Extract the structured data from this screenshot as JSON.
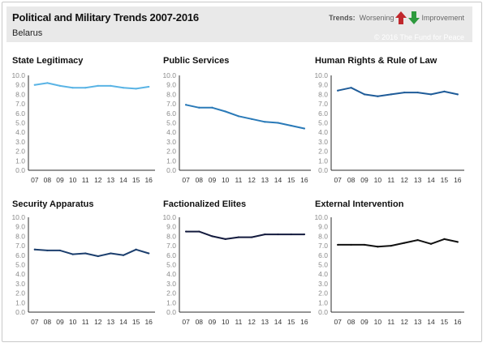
{
  "header": {
    "title": "Political and Military Trends 2007-2016",
    "subtitle": "Belarus",
    "trends_label": "Trends:",
    "worsening_label": "Worsening",
    "improvement_label": "Improvement",
    "copyright": "© 2016 The Fund for Peace"
  },
  "colors": {
    "header_bg": "#e9e9e9",
    "worsening_arrow": "#c0282d",
    "improvement_arrow": "#2e9a3e"
  },
  "chart_data": [
    {
      "type": "line",
      "title": "State Legitimacy",
      "color": "#5ab4e5",
      "categories": [
        "07",
        "08",
        "09",
        "10",
        "11",
        "12",
        "13",
        "14",
        "15",
        "16"
      ],
      "values": [
        9.0,
        9.2,
        8.9,
        8.7,
        8.7,
        8.9,
        8.9,
        8.7,
        8.6,
        8.8
      ],
      "ylim": [
        0,
        10
      ],
      "yticks": [
        "0.0",
        "1.0",
        "2.0",
        "3.0",
        "4.0",
        "5.0",
        "6.0",
        "7.0",
        "8.0",
        "9.0",
        "10.0"
      ]
    },
    {
      "type": "line",
      "title": "Public Services",
      "color": "#2a7ab8",
      "categories": [
        "07",
        "08",
        "09",
        "10",
        "11",
        "12",
        "13",
        "14",
        "15",
        "16"
      ],
      "values": [
        6.9,
        6.6,
        6.6,
        6.2,
        5.7,
        5.4,
        5.1,
        5.0,
        4.7,
        4.4
      ],
      "ylim": [
        0,
        10
      ],
      "yticks": [
        "0.0",
        "1.0",
        "2.0",
        "3.0",
        "4.0",
        "5.0",
        "6.0",
        "7.0",
        "8.0",
        "9.0",
        "10.0"
      ]
    },
    {
      "type": "line",
      "title": "Human Rights & Rule of Law",
      "color": "#1f5c99",
      "categories": [
        "07",
        "08",
        "09",
        "10",
        "11",
        "12",
        "13",
        "14",
        "15",
        "16"
      ],
      "values": [
        8.4,
        8.7,
        8.0,
        7.8,
        8.0,
        8.2,
        8.2,
        8.0,
        8.3,
        8.0
      ],
      "ylim": [
        0,
        10
      ],
      "yticks": [
        "0.0",
        "1.0",
        "2.0",
        "3.0",
        "4.0",
        "5.0",
        "6.0",
        "7.0",
        "8.0",
        "9.0",
        "10.0"
      ]
    },
    {
      "type": "line",
      "title": "Security Apparatus",
      "color": "#1c3f6e",
      "categories": [
        "07",
        "08",
        "09",
        "10",
        "11",
        "12",
        "13",
        "14",
        "15",
        "16"
      ],
      "values": [
        6.6,
        6.5,
        6.5,
        6.1,
        6.2,
        5.9,
        6.2,
        6.0,
        6.6,
        6.2
      ],
      "ylim": [
        0,
        10
      ],
      "yticks": [
        "0.0",
        "1.0",
        "2.0",
        "3.0",
        "4.0",
        "5.0",
        "6.0",
        "7.0",
        "8.0",
        "9.0",
        "10.0"
      ]
    },
    {
      "type": "line",
      "title": "Factionalized Elites",
      "color": "#141b3e",
      "categories": [
        "07",
        "08",
        "09",
        "10",
        "11",
        "12",
        "13",
        "14",
        "15",
        "16"
      ],
      "values": [
        8.5,
        8.5,
        8.0,
        7.7,
        7.9,
        7.9,
        8.2,
        8.2,
        8.2,
        8.2
      ],
      "ylim": [
        0,
        10
      ],
      "yticks": [
        "0.0",
        "1.0",
        "2.0",
        "3.0",
        "4.0",
        "5.0",
        "6.0",
        "7.0",
        "8.0",
        "9.0",
        "10.0"
      ]
    },
    {
      "type": "line",
      "title": "External Intervention",
      "color": "#111111",
      "categories": [
        "07",
        "08",
        "09",
        "10",
        "11",
        "12",
        "13",
        "14",
        "15",
        "16"
      ],
      "values": [
        7.1,
        7.1,
        7.1,
        6.9,
        7.0,
        7.3,
        7.6,
        7.2,
        7.7,
        7.4
      ],
      "ylim": [
        0,
        10
      ],
      "yticks": [
        "0.0",
        "1.0",
        "2.0",
        "3.0",
        "4.0",
        "5.0",
        "6.0",
        "7.0",
        "8.0",
        "9.0",
        "10.0"
      ]
    }
  ]
}
